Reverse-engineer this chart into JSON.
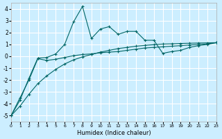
{
  "xlabel": "Humidex (Indice chaleur)",
  "bg_color": "#cceeff",
  "grid_color": "#ffffff",
  "line_color": "#006666",
  "xlim": [
    0,
    23
  ],
  "ylim": [
    -5.5,
    4.5
  ],
  "xticks": [
    0,
    1,
    2,
    3,
    4,
    5,
    6,
    7,
    8,
    9,
    10,
    11,
    12,
    13,
    14,
    15,
    16,
    17,
    18,
    19,
    20,
    21,
    22,
    23
  ],
  "yticks": [
    -5,
    -4,
    -3,
    -2,
    -1,
    0,
    1,
    2,
    3,
    4
  ],
  "series1_x": [
    0,
    1,
    2,
    3,
    4,
    5,
    6,
    7,
    8,
    9,
    10,
    11,
    12,
    13,
    14,
    15,
    16,
    17,
    18,
    19,
    20,
    21,
    22,
    23
  ],
  "series1_y": [
    -5.0,
    -3.7,
    -1.85,
    -0.15,
    -0.1,
    0.2,
    1.0,
    2.9,
    4.2,
    1.5,
    2.3,
    2.5,
    1.85,
    2.1,
    2.1,
    1.35,
    1.35,
    0.25,
    0.4,
    0.5,
    0.75,
    0.9,
    1.0,
    1.15
  ],
  "series2_x": [
    0,
    1,
    2,
    3,
    4,
    5,
    6,
    7,
    8,
    9,
    10,
    11,
    12,
    13,
    14,
    15,
    16,
    17,
    18,
    19,
    20,
    21,
    22,
    23
  ],
  "series2_y": [
    -5.0,
    -3.5,
    -2.0,
    -0.2,
    -0.35,
    -0.25,
    -0.1,
    0.05,
    0.15,
    0.2,
    0.3,
    0.35,
    0.4,
    0.5,
    0.6,
    0.7,
    0.75,
    0.8,
    0.85,
    0.9,
    0.95,
    1.0,
    1.05,
    1.15
  ],
  "series3_x": [
    0,
    1,
    2,
    3,
    4,
    5,
    6,
    7,
    8,
    9,
    10,
    11,
    12,
    13,
    14,
    15,
    16,
    17,
    18,
    19,
    20,
    21,
    22,
    23
  ],
  "series3_y": [
    -5.0,
    -4.2,
    -3.2,
    -2.3,
    -1.65,
    -1.1,
    -0.65,
    -0.3,
    -0.05,
    0.15,
    0.35,
    0.5,
    0.65,
    0.75,
    0.85,
    0.92,
    0.98,
    1.03,
    1.05,
    1.08,
    1.1,
    1.12,
    1.13,
    1.15
  ]
}
